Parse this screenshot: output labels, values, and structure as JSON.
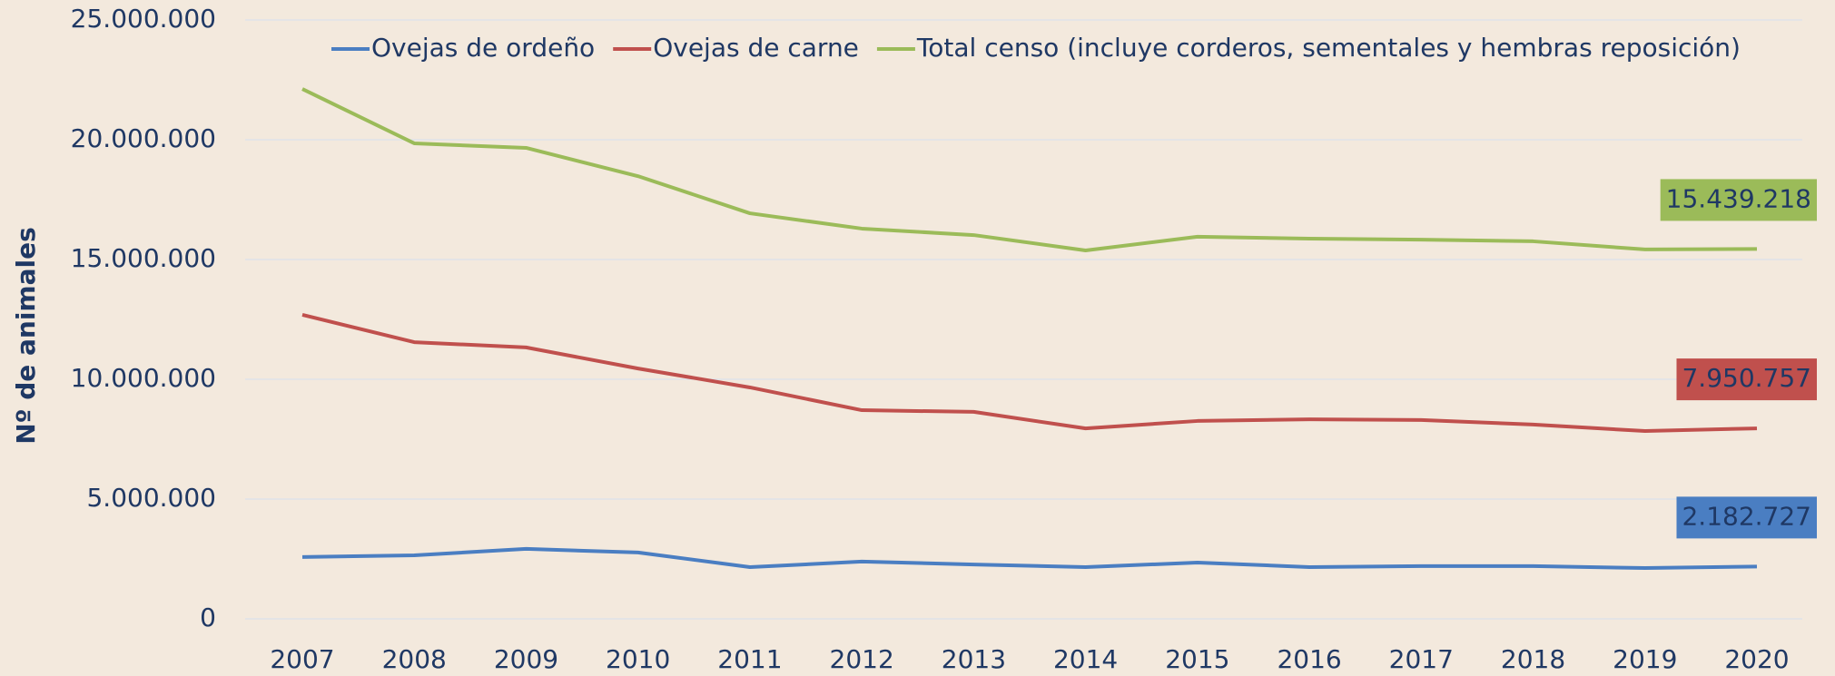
{
  "chart_data": {
    "type": "line",
    "y_label": "Nº de animales",
    "categories": [
      "2007",
      "2008",
      "2009",
      "2010",
      "2011",
      "2012",
      "2013",
      "2014",
      "2015",
      "2016",
      "2017",
      "2018",
      "2019",
      "2020"
    ],
    "series": [
      {
        "name": "Ovejas de ordeño",
        "color": "#4a7ec2",
        "values": [
          2580000,
          2650000,
          2920000,
          2770000,
          2160000,
          2390000,
          2270000,
          2160000,
          2350000,
          2160000,
          2200000,
          2200000,
          2120000,
          2182727
        ],
        "value_labels": [
          null,
          null,
          null,
          null,
          null,
          null,
          null,
          null,
          null,
          null,
          null,
          null,
          null,
          "2.182.727"
        ]
      },
      {
        "name": "Ovejas de carne",
        "color": "#c0504d",
        "values": [
          12690000,
          11550000,
          11330000,
          10450000,
          9660000,
          8710000,
          8640000,
          7950000,
          8260000,
          8330000,
          8300000,
          8110000,
          7840000,
          7950757
        ],
        "value_labels": [
          null,
          null,
          null,
          null,
          null,
          null,
          null,
          null,
          null,
          null,
          null,
          null,
          null,
          "7.950.757"
        ]
      },
      {
        "name": "Total censo (incluye corderos, sementales y hembras reposición)",
        "color": "#9bbb59",
        "values": [
          22120000,
          19850000,
          19660000,
          18480000,
          16930000,
          16290000,
          16020000,
          15380000,
          15950000,
          15870000,
          15830000,
          15760000,
          15420000,
          15439218
        ],
        "value_labels": [
          null,
          null,
          null,
          null,
          null,
          null,
          null,
          null,
          null,
          null,
          null,
          null,
          null,
          "15.439.218"
        ]
      }
    ],
    "ylim": [
      0,
      25000000
    ],
    "yticks": [
      0,
      {
        "value": 5000000,
        "label": "5.000.000"
      },
      {
        "value": 10000000,
        "label": "10.000.000"
      },
      {
        "value": 15000000,
        "label": "15.000.000"
      },
      {
        "value": 20000000,
        "label": "20.000.000"
      },
      {
        "value": 25000000,
        "label": "25.000.000"
      }
    ],
    "grid": true,
    "legend": "top"
  }
}
